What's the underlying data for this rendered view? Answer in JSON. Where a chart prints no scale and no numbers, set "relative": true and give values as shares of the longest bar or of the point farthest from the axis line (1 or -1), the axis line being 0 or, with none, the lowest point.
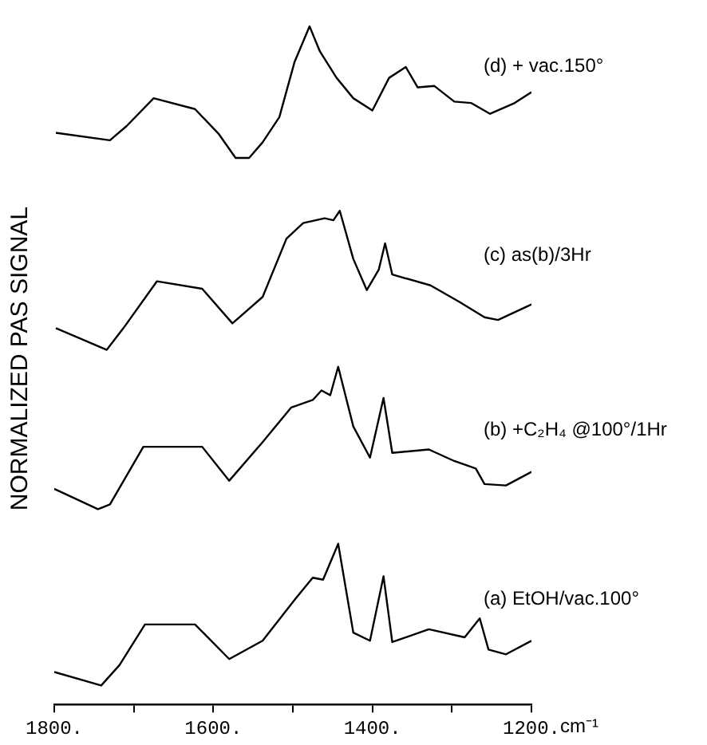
{
  "chart_data": {
    "type": "line",
    "relative": true,
    "xlabel": "cm⁻¹",
    "ylabel": "NORMALIZED PAS SIGNAL",
    "xlim": [
      1800,
      1200
    ],
    "xticks": [
      {
        "value": 1800,
        "label": "1800."
      },
      {
        "value": 1700,
        "label": null
      },
      {
        "value": 1600,
        "label": "1600."
      },
      {
        "value": 1500,
        "label": null
      },
      {
        "value": 1400,
        "label": "1400."
      },
      {
        "value": 1300,
        "label": null
      },
      {
        "value": 1200,
        "label": "1200."
      }
    ],
    "grid": false,
    "legend": false,
    "marker": "none",
    "line_style": "solid",
    "series": [
      {
        "name": "(d) + vac.150°",
        "color": "#000000",
        "x": [
          1798,
          1730,
          1709,
          1675,
          1623,
          1593,
          1572,
          1555,
          1538,
          1517,
          1498,
          1479,
          1466,
          1445,
          1424,
          1400,
          1379,
          1358,
          1343,
          1322,
          1297,
          1276,
          1252,
          1221,
          1200
        ],
        "values": [
          0.843,
          0.832,
          0.853,
          0.894,
          0.878,
          0.841,
          0.806,
          0.806,
          0.829,
          0.866,
          0.947,
          1,
          0.963,
          0.924,
          0.894,
          0.876,
          0.924,
          0.94,
          0.91,
          0.912,
          0.889,
          0.887,
          0.871,
          0.887,
          0.903
        ]
      },
      {
        "name": "(c) as(b)/3Hr",
        "color": "#000000",
        "x": [
          1798,
          1734,
          1713,
          1671,
          1614,
          1576,
          1538,
          1508,
          1487,
          1460,
          1449,
          1441,
          1424,
          1407,
          1392,
          1384,
          1375,
          1327,
          1291,
          1259,
          1242,
          1200
        ],
        "values": [
          0.555,
          0.523,
          0.555,
          0.624,
          0.613,
          0.562,
          0.601,
          0.687,
          0.71,
          0.717,
          0.714,
          0.728,
          0.657,
          0.611,
          0.641,
          0.68,
          0.634,
          0.618,
          0.594,
          0.571,
          0.567,
          0.59
        ]
      },
      {
        "name": "(b) +C₂H₄ @100°/1Hr",
        "color": "#000000",
        "x": [
          1800,
          1745,
          1730,
          1688,
          1614,
          1580,
          1538,
          1502,
          1475,
          1464,
          1453,
          1443,
          1424,
          1403,
          1386,
          1375,
          1329,
          1297,
          1270,
          1259,
          1232,
          1200
        ],
        "values": [
          0.318,
          0.288,
          0.295,
          0.38,
          0.38,
          0.33,
          0.387,
          0.438,
          0.449,
          0.463,
          0.456,
          0.498,
          0.41,
          0.364,
          0.452,
          0.371,
          0.376,
          0.359,
          0.348,
          0.325,
          0.323,
          0.343
        ]
      },
      {
        "name": "(a) EtOH/vac.100°",
        "color": "#000000",
        "x": [
          1800,
          1741,
          1718,
          1686,
          1623,
          1580,
          1538,
          1496,
          1475,
          1462,
          1443,
          1424,
          1403,
          1386,
          1375,
          1329,
          1284,
          1265,
          1254,
          1232,
          1200
        ],
        "values": [
          0.048,
          0.028,
          0.058,
          0.118,
          0.118,
          0.067,
          0.094,
          0.157,
          0.187,
          0.184,
          0.237,
          0.106,
          0.094,
          0.189,
          0.092,
          0.111,
          0.099,
          0.127,
          0.081,
          0.074,
          0.094
        ]
      }
    ]
  }
}
